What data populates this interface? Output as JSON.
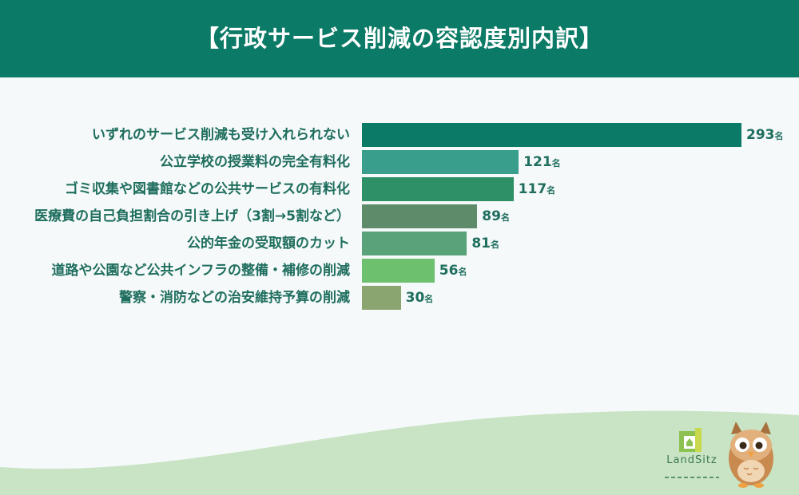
{
  "title": "【行政サービス削減の容認度別内訳】",
  "unit": "名",
  "brand": "LandSitz",
  "chart_data": {
    "type": "bar",
    "orientation": "horizontal",
    "title": "【行政サービス削減の容認度別内訳】",
    "categories": [
      "いずれのサービス削減も受け入れられない",
      "公立学校の授業料の完全有料化",
      "ゴミ収集や図書館などの公共サービスの有料化",
      "医療費の自己負担割合の引き上げ（3割→5割など）",
      "公的年金の受取額のカット",
      "道路や公園など公共インフラの整備・補修の削減",
      "警察・消防などの治安維持予算の削減"
    ],
    "values": [
      293,
      121,
      117,
      89,
      81,
      56,
      30
    ],
    "colors": [
      "#0b7a66",
      "#3a9e8c",
      "#2e9066",
      "#5e8c6a",
      "#5aa37a",
      "#6cc06e",
      "#8aa570"
    ],
    "data_label_suffix": "名",
    "xlim": [
      0,
      293
    ],
    "grid": false,
    "legend": "none"
  }
}
